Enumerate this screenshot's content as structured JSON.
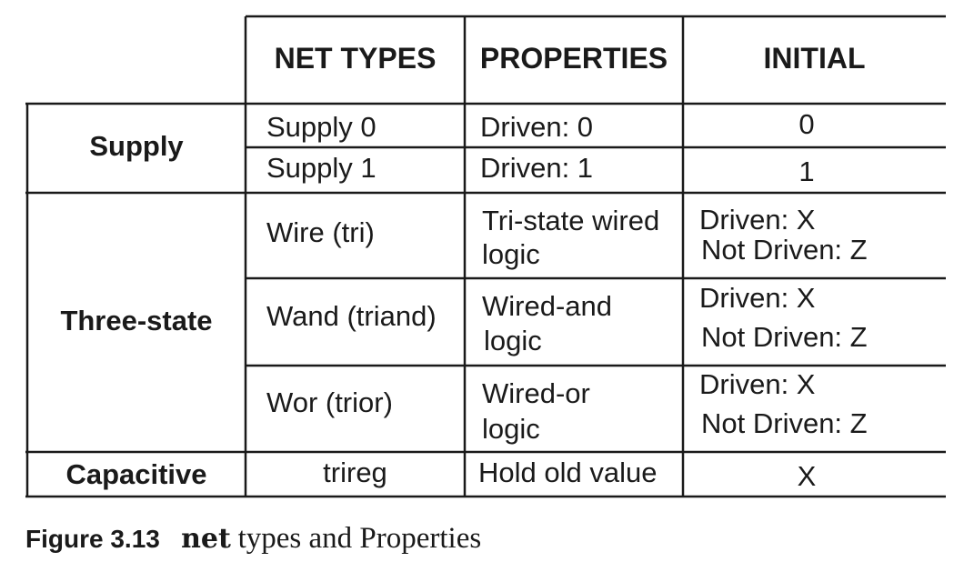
{
  "table": {
    "headers": [
      "NET TYPES",
      "PROPERTIES",
      "INITIAL"
    ],
    "groups": [
      "Supply",
      "Three-state",
      "Capacitive"
    ],
    "rows": [
      {
        "net": "Supply 0",
        "prop": [
          "Driven: 0"
        ],
        "init": [
          "0"
        ]
      },
      {
        "net": "Supply 1",
        "prop": [
          "Driven: 1"
        ],
        "init": [
          "1"
        ]
      },
      {
        "net": "Wire (tri)",
        "prop": [
          "Tri-state wired",
          "logic"
        ],
        "init": [
          "Driven: X",
          "Not Driven: Z"
        ]
      },
      {
        "net": "Wand (triand)",
        "prop": [
          "Wired-and",
          "logic"
        ],
        "init": [
          "Driven: X",
          "Not Driven: Z"
        ]
      },
      {
        "net": "Wor (trior)",
        "prop": [
          "Wired-or",
          "logic"
        ],
        "init": [
          "Driven: X",
          "Not Driven: Z"
        ]
      },
      {
        "net": "trireg",
        "prop": [
          "Hold old value"
        ],
        "init": [
          "X"
        ]
      }
    ]
  },
  "caption": {
    "figure": "Figure 3.13",
    "code_word": "net",
    "rest": "types and Properties"
  }
}
